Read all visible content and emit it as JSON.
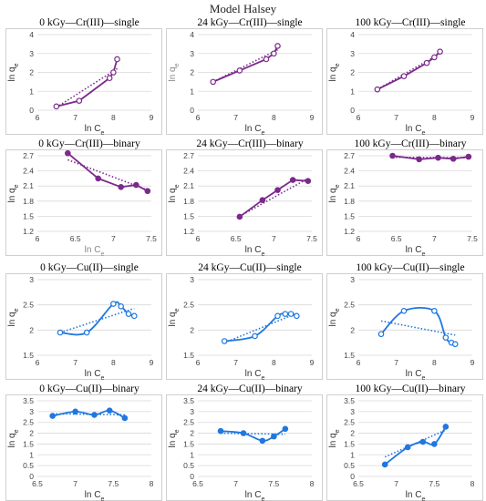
{
  "title": "Model Halsey",
  "colors": {
    "purple": "#7b2a8c",
    "blue": "#1f77e0",
    "grid": "#d9d9d9",
    "box": "#cfcfcf"
  },
  "chart_data": [
    {
      "type": "scatter",
      "title": "0 kGy—Cr(III)—single",
      "color": "purple",
      "marker": "open",
      "smooth": false,
      "xlabel": "ln C",
      "xsub": "e",
      "ylabel": "ln q",
      "ysub": "e",
      "xlim": [
        6,
        9
      ],
      "xticks": [
        6,
        7,
        8,
        9
      ],
      "ylim": [
        0,
        4
      ],
      "yticks": [
        0,
        1,
        2,
        3,
        4
      ],
      "x": [
        6.5,
        7.1,
        7.9,
        8.0,
        8.1
      ],
      "y": [
        0.2,
        0.5,
        1.7,
        2.0,
        2.7
      ],
      "trend": [
        [
          6.5,
          0.15
        ],
        [
          8.1,
          2.2
        ]
      ]
    },
    {
      "type": "scatter",
      "title": "24 kGy—Cr(III)—single",
      "color": "purple",
      "marker": "open",
      "smooth": false,
      "xlabel": "ln C",
      "xsub": "e",
      "ylabel": "ln q",
      "ysub": "e",
      "ylabel_grey": true,
      "xlim": [
        6,
        9
      ],
      "xticks": [
        6,
        7,
        8,
        9
      ],
      "ylim": [
        0,
        4
      ],
      "yticks": [
        0,
        1,
        2,
        3,
        4
      ],
      "x": [
        6.4,
        7.1,
        7.8,
        8.0,
        8.1
      ],
      "y": [
        1.5,
        2.1,
        2.7,
        3.0,
        3.4
      ],
      "trend": [
        [
          6.4,
          1.5
        ],
        [
          8.1,
          3.2
        ]
      ]
    },
    {
      "type": "scatter",
      "title": "100 kGy—Cr(III)—single",
      "color": "purple",
      "marker": "open",
      "smooth": false,
      "xlabel": "ln C",
      "xsub": "e",
      "ylabel": "ln q",
      "ysub": "e",
      "xlim": [
        6,
        9
      ],
      "xticks": [
        6,
        7,
        8,
        9
      ],
      "ylim": [
        0,
        4
      ],
      "yticks": [
        0,
        1,
        2,
        3,
        4
      ],
      "x": [
        6.5,
        7.2,
        7.8,
        8.0,
        8.15
      ],
      "y": [
        1.1,
        1.8,
        2.5,
        2.8,
        3.1
      ],
      "trend": [
        [
          6.5,
          1.1
        ],
        [
          8.15,
          3.0
        ]
      ]
    },
    {
      "type": "scatter",
      "title": "0 kGy—Cr(III)—binary",
      "color": "purple",
      "marker": "filled",
      "smooth": false,
      "xlabel": "ln C",
      "xsub": "e",
      "xlabel_grey": true,
      "ylabel": "ln q",
      "ysub": "e",
      "xlim": [
        6,
        7.5
      ],
      "xticks": [
        6,
        6.5,
        7,
        7.5
      ],
      "ylim": [
        1.2,
        2.7
      ],
      "yticks": [
        1.2,
        1.5,
        1.8,
        2.1,
        2.4,
        2.7
      ],
      "x": [
        6.4,
        6.8,
        7.1,
        7.3,
        7.45
      ],
      "y": [
        2.75,
        2.25,
        2.08,
        2.12,
        2.0
      ],
      "trend": [
        [
          6.4,
          2.62
        ],
        [
          7.45,
          2.02
        ]
      ]
    },
    {
      "type": "scatter",
      "title": "24 kGy—Cr(III)—binary",
      "color": "purple",
      "marker": "filled",
      "smooth": false,
      "xlabel": "ln C",
      "xsub": "e",
      "ylabel": "ln q",
      "ysub": "e",
      "xlim": [
        6,
        7.5
      ],
      "xticks": [
        6,
        6.5,
        7,
        7.5
      ],
      "ylim": [
        1.2,
        2.7
      ],
      "yticks": [
        1.2,
        1.5,
        1.8,
        2.1,
        2.4,
        2.7
      ],
      "x": [
        6.55,
        6.85,
        7.05,
        7.25,
        7.45
      ],
      "y": [
        1.49,
        1.82,
        2.02,
        2.22,
        2.2
      ],
      "trend": [
        [
          6.55,
          1.5
        ],
        [
          7.45,
          2.25
        ]
      ]
    },
    {
      "type": "scatter",
      "title": "100 kGy—Cr(III)—binary",
      "color": "purple",
      "marker": "filled",
      "smooth": false,
      "xlabel": "ln C",
      "xsub": "e",
      "ylabel": "ln q",
      "ysub": "e",
      "xlim": [
        6,
        7.5
      ],
      "xticks": [
        6,
        6.5,
        7,
        7.5
      ],
      "ylim": [
        1.2,
        2.7
      ],
      "yticks": [
        1.2,
        1.5,
        1.8,
        2.1,
        2.4,
        2.7
      ],
      "x": [
        6.45,
        6.8,
        7.05,
        7.25,
        7.45
      ],
      "y": [
        2.7,
        2.63,
        2.66,
        2.64,
        2.68
      ],
      "trend": [
        [
          6.45,
          2.67
        ],
        [
          7.45,
          2.66
        ]
      ]
    },
    {
      "type": "scatter",
      "title": "0 kGy—Cu(II)—single",
      "color": "blue",
      "marker": "open",
      "smooth": true,
      "xlabel": "ln C",
      "xsub": "e",
      "ylabel": "ln q",
      "ysub": "e",
      "xlim": [
        6,
        9
      ],
      "xticks": [
        6,
        7,
        8,
        9
      ],
      "ylim": [
        1.5,
        3
      ],
      "yticks": [
        1.5,
        2,
        2.5,
        3
      ],
      "x": [
        6.6,
        7.3,
        8.0,
        8.2,
        8.4,
        8.55
      ],
      "y": [
        1.95,
        1.95,
        2.52,
        2.47,
        2.32,
        2.28
      ],
      "trend": [
        [
          6.6,
          1.95
        ],
        [
          8.55,
          2.43
        ]
      ]
    },
    {
      "type": "scatter",
      "title": "24 kGy—Cu(II)—single",
      "color": "blue",
      "marker": "open",
      "smooth": true,
      "xlabel": "ln C",
      "xsub": "e",
      "ylabel": "ln q",
      "ysub": "e",
      "xlim": [
        6,
        9
      ],
      "xticks": [
        6,
        7,
        8,
        9
      ],
      "ylim": [
        1.5,
        3
      ],
      "yticks": [
        1.5,
        2,
        2.5,
        3
      ],
      "x": [
        6.7,
        7.5,
        8.1,
        8.3,
        8.45,
        8.6
      ],
      "y": [
        1.78,
        1.88,
        2.28,
        2.32,
        2.32,
        2.28
      ],
      "trend": [
        [
          6.7,
          1.75
        ],
        [
          8.6,
          2.33
        ]
      ]
    },
    {
      "type": "scatter",
      "title": "100 kGy—Cu(II)—single",
      "color": "blue",
      "marker": "open",
      "smooth": true,
      "xlabel": "ln C",
      "xsub": "e",
      "ylabel": "ln q",
      "ysub": "e",
      "xlim": [
        6,
        9
      ],
      "xticks": [
        6,
        7,
        8,
        9
      ],
      "ylim": [
        1.5,
        3
      ],
      "yticks": [
        1.5,
        2,
        2.5,
        3
      ],
      "x": [
        6.6,
        7.2,
        8.0,
        8.3,
        8.45,
        8.55
      ],
      "y": [
        1.92,
        2.38,
        2.38,
        1.85,
        1.75,
        1.72
      ],
      "trend": [
        [
          6.6,
          2.18
        ],
        [
          8.55,
          1.9
        ]
      ]
    },
    {
      "type": "scatter",
      "title": "0 kGy—Cu(II)—binary",
      "color": "blue",
      "marker": "filled",
      "smooth": true,
      "xlabel": "ln C",
      "xsub": "e",
      "ylabel": "ln q",
      "ysub": "e",
      "xlim": [
        6.5,
        8
      ],
      "xticks": [
        6.5,
        7,
        7.5,
        8
      ],
      "ylim": [
        0,
        3.5
      ],
      "yticks": [
        0,
        0.5,
        1,
        1.5,
        2,
        2.5,
        3,
        3.5
      ],
      "x": [
        6.7,
        7.0,
        7.25,
        7.45,
        7.65
      ],
      "y": [
        2.8,
        3.0,
        2.85,
        3.05,
        2.7
      ],
      "trend": [
        [
          6.7,
          2.9
        ],
        [
          7.65,
          2.85
        ]
      ]
    },
    {
      "type": "scatter",
      "title": "24 kGy—Cu(II)—binary",
      "color": "blue",
      "marker": "filled",
      "smooth": true,
      "xlabel": "ln C",
      "xsub": "e",
      "ylabel": "ln q",
      "ysub": "e",
      "xlim": [
        6.5,
        8
      ],
      "xticks": [
        6.5,
        7,
        7.5,
        8
      ],
      "ylim": [
        0,
        3.5
      ],
      "yticks": [
        0,
        0.5,
        1,
        1.5,
        2,
        2.5,
        3,
        3.5
      ],
      "x": [
        6.8,
        7.1,
        7.35,
        7.5,
        7.65
      ],
      "y": [
        2.1,
        2.0,
        1.65,
        1.85,
        2.2
      ],
      "trend": [
        [
          6.8,
          2.0
        ],
        [
          7.65,
          1.95
        ]
      ]
    },
    {
      "type": "scatter",
      "title": "100 kGy—Cu(II)—binary",
      "color": "blue",
      "marker": "filled",
      "smooth": true,
      "xlabel": "ln C",
      "xsub": "e",
      "ylabel": "ln q",
      "ysub": "e",
      "xlim": [
        6.5,
        8
      ],
      "xticks": [
        6.5,
        7,
        7.5,
        8
      ],
      "ylim": [
        0,
        3.5
      ],
      "yticks": [
        0,
        0.5,
        1,
        1.5,
        2,
        2.5,
        3,
        3.5
      ],
      "x": [
        6.85,
        7.15,
        7.35,
        7.5,
        7.65
      ],
      "y": [
        0.55,
        1.35,
        1.6,
        1.5,
        2.3
      ],
      "trend": [
        [
          6.85,
          0.9
        ],
        [
          7.65,
          2.15
        ]
      ]
    }
  ]
}
